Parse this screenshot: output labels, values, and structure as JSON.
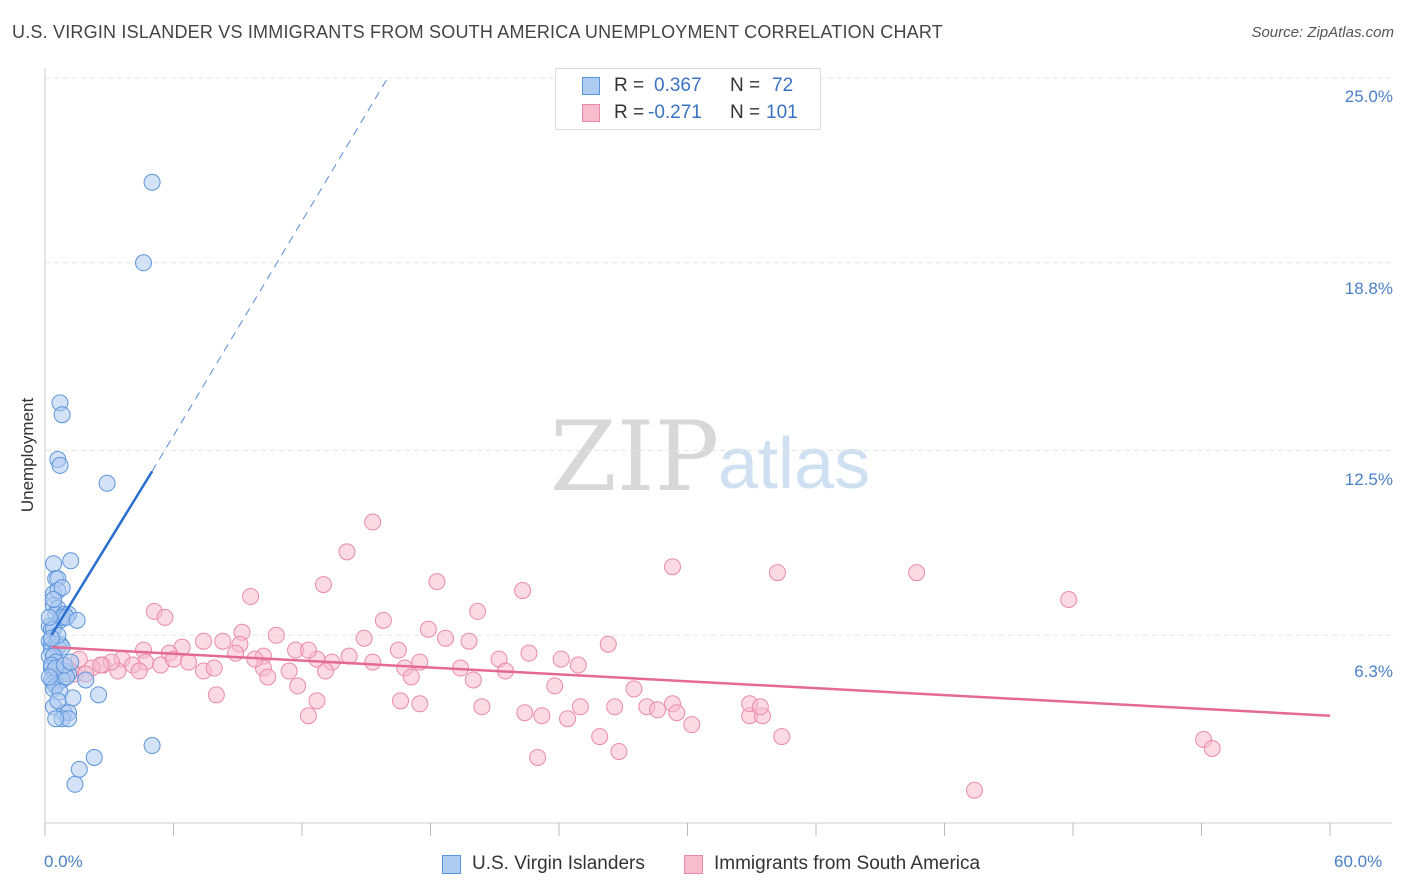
{
  "title": "U.S. VIRGIN ISLANDER VS IMMIGRANTS FROM SOUTH AMERICA UNEMPLOYMENT CORRELATION CHART",
  "source": "Source: ZipAtlas.com",
  "watermark": {
    "zip": "ZIP",
    "atlas": "atlas"
  },
  "legend_top": {
    "r_label": "R =",
    "n_label": "N =",
    "rows": [
      {
        "r": "0.367",
        "n": "72"
      },
      {
        "r": "-0.271",
        "n": "101"
      }
    ]
  },
  "colors": {
    "blue_fill": "#aecbf0",
    "blue_stroke": "#5b95dc",
    "blue_line": "#2a6fd0",
    "pink_fill": "#f7bccd",
    "pink_stroke": "#ea8aa8",
    "pink_line": "#e46a93",
    "grid": "#e6e6e6",
    "tick_label": "#4a80c8"
  },
  "chart_data": {
    "type": "scatter",
    "title": "U.S. VIRGIN ISLANDER VS IMMIGRANTS FROM SOUTH AMERICA UNEMPLOYMENT CORRELATION CHART",
    "xlabel": "",
    "ylabel": "Unemployment",
    "xlim": [
      0,
      60
    ],
    "ylim": [
      0,
      25
    ],
    "x_tick_labels": [
      "0.0%",
      "60.0%"
    ],
    "y_ticks": [
      6.3,
      12.5,
      18.8,
      25.0
    ],
    "y_tick_labels": [
      "6.3%",
      "12.5%",
      "18.8%",
      "25.0%"
    ],
    "grid": true,
    "legend_position": "bottom",
    "series": [
      {
        "name": "U.S. Virgin Islanders",
        "color": "blue",
        "trend": {
          "x": [
            0.3,
            5.0
          ],
          "y": [
            6.3,
            11.8
          ],
          "dashed_to": [
            16.0,
            25.0
          ]
        },
        "points": [
          [
            5.0,
            21.5
          ],
          [
            4.6,
            18.8
          ],
          [
            0.7,
            14.1
          ],
          [
            0.8,
            13.7
          ],
          [
            0.6,
            12.2
          ],
          [
            0.7,
            12.0
          ],
          [
            2.9,
            11.4
          ],
          [
            1.2,
            8.8
          ],
          [
            0.4,
            8.7
          ],
          [
            0.5,
            8.2
          ],
          [
            0.6,
            8.2
          ],
          [
            0.4,
            7.7
          ],
          [
            0.6,
            7.8
          ],
          [
            0.8,
            7.9
          ],
          [
            0.4,
            7.3
          ],
          [
            0.6,
            7.2
          ],
          [
            0.5,
            7.0
          ],
          [
            0.9,
            7.0
          ],
          [
            1.1,
            7.0
          ],
          [
            0.7,
            6.8
          ],
          [
            0.8,
            6.9
          ],
          [
            1.0,
            6.9
          ],
          [
            1.5,
            6.8
          ],
          [
            0.2,
            6.6
          ],
          [
            0.3,
            6.5
          ],
          [
            0.4,
            6.5
          ],
          [
            0.2,
            6.1
          ],
          [
            0.3,
            6.0
          ],
          [
            0.5,
            6.0
          ],
          [
            0.7,
            6.0
          ],
          [
            0.3,
            5.8
          ],
          [
            0.6,
            5.9
          ],
          [
            0.8,
            5.9
          ],
          [
            0.2,
            5.6
          ],
          [
            0.4,
            5.6
          ],
          [
            0.5,
            5.4
          ],
          [
            0.3,
            5.2
          ],
          [
            0.4,
            5.1
          ],
          [
            0.6,
            5.1
          ],
          [
            0.7,
            5.0
          ],
          [
            0.9,
            5.1
          ],
          [
            1.1,
            5.0
          ],
          [
            0.3,
            4.8
          ],
          [
            0.4,
            4.7
          ],
          [
            0.5,
            4.6
          ],
          [
            0.8,
            4.8
          ],
          [
            1.0,
            4.9
          ],
          [
            1.9,
            4.8
          ],
          [
            0.4,
            4.5
          ],
          [
            0.7,
            4.4
          ],
          [
            1.3,
            4.2
          ],
          [
            2.5,
            4.3
          ],
          [
            0.4,
            3.9
          ],
          [
            0.9,
            3.7
          ],
          [
            1.1,
            3.7
          ],
          [
            0.8,
            3.5
          ],
          [
            1.1,
            3.5
          ],
          [
            5.0,
            2.6
          ],
          [
            2.3,
            2.2
          ],
          [
            1.6,
            1.8
          ],
          [
            1.4,
            1.3
          ],
          [
            0.3,
            5.3
          ],
          [
            0.5,
            5.2
          ],
          [
            0.6,
            6.3
          ],
          [
            0.2,
            6.9
          ],
          [
            0.4,
            7.5
          ],
          [
            0.9,
            5.3
          ],
          [
            1.2,
            5.4
          ],
          [
            0.2,
            4.9
          ],
          [
            0.6,
            4.1
          ],
          [
            0.5,
            3.5
          ],
          [
            0.3,
            6.2
          ]
        ]
      },
      {
        "name": "Immigrants from South America",
        "color": "pink",
        "trend": {
          "x": [
            0.3,
            60.0
          ],
          "y": [
            5.9,
            3.6
          ]
        },
        "points": [
          [
            15.3,
            10.1
          ],
          [
            14.1,
            9.1
          ],
          [
            29.3,
            8.6
          ],
          [
            34.2,
            8.4
          ],
          [
            40.7,
            8.4
          ],
          [
            13.0,
            8.0
          ],
          [
            18.3,
            8.1
          ],
          [
            22.3,
            7.8
          ],
          [
            9.6,
            7.6
          ],
          [
            47.8,
            7.5
          ],
          [
            5.1,
            7.1
          ],
          [
            5.6,
            6.9
          ],
          [
            20.2,
            7.1
          ],
          [
            15.8,
            6.8
          ],
          [
            17.9,
            6.5
          ],
          [
            9.2,
            6.4
          ],
          [
            18.7,
            6.2
          ],
          [
            10.8,
            6.3
          ],
          [
            14.9,
            6.2
          ],
          [
            7.4,
            6.1
          ],
          [
            8.3,
            6.1
          ],
          [
            6.4,
            5.9
          ],
          [
            9.1,
            6.0
          ],
          [
            4.6,
            5.8
          ],
          [
            5.8,
            5.7
          ],
          [
            11.7,
            5.8
          ],
          [
            16.5,
            5.8
          ],
          [
            22.6,
            5.7
          ],
          [
            10.2,
            5.6
          ],
          [
            12.7,
            5.5
          ],
          [
            21.2,
            5.5
          ],
          [
            24.1,
            5.5
          ],
          [
            1.6,
            5.5
          ],
          [
            3.6,
            5.5
          ],
          [
            4.7,
            5.4
          ],
          [
            6.7,
            5.4
          ],
          [
            13.4,
            5.4
          ],
          [
            15.3,
            5.4
          ],
          [
            17.5,
            5.4
          ],
          [
            24.9,
            5.3
          ],
          [
            2.7,
            5.3
          ],
          [
            4.1,
            5.3
          ],
          [
            5.4,
            5.3
          ],
          [
            10.2,
            5.2
          ],
          [
            16.8,
            5.2
          ],
          [
            19.4,
            5.2
          ],
          [
            2.2,
            5.2
          ],
          [
            3.4,
            5.1
          ],
          [
            7.4,
            5.1
          ],
          [
            11.4,
            5.1
          ],
          [
            13.1,
            5.1
          ],
          [
            21.5,
            5.1
          ],
          [
            1.4,
            5.0
          ],
          [
            1.9,
            5.0
          ],
          [
            0.9,
            5.0
          ],
          [
            17.1,
            4.9
          ],
          [
            10.4,
            4.9
          ],
          [
            20.0,
            4.8
          ],
          [
            11.8,
            4.6
          ],
          [
            23.8,
            4.6
          ],
          [
            27.5,
            4.5
          ],
          [
            8.0,
            4.3
          ],
          [
            12.7,
            4.1
          ],
          [
            16.6,
            4.1
          ],
          [
            17.5,
            4.0
          ],
          [
            20.4,
            3.9
          ],
          [
            25.0,
            3.9
          ],
          [
            26.6,
            3.9
          ],
          [
            28.1,
            3.9
          ],
          [
            29.3,
            4.0
          ],
          [
            28.6,
            3.8
          ],
          [
            29.5,
            3.7
          ],
          [
            22.4,
            3.7
          ],
          [
            32.9,
            3.6
          ],
          [
            33.5,
            3.6
          ],
          [
            23.2,
            3.6
          ],
          [
            12.3,
            3.6
          ],
          [
            30.2,
            3.3
          ],
          [
            24.4,
            3.5
          ],
          [
            25.9,
            2.9
          ],
          [
            32.9,
            4.0
          ],
          [
            33.4,
            3.9
          ],
          [
            26.8,
            2.4
          ],
          [
            23.0,
            2.2
          ],
          [
            34.4,
            2.9
          ],
          [
            54.1,
            2.8
          ],
          [
            54.5,
            2.5
          ],
          [
            43.4,
            1.1
          ],
          [
            1.2,
            5.1
          ],
          [
            0.8,
            5.3
          ],
          [
            3.1,
            5.4
          ],
          [
            6.0,
            5.5
          ],
          [
            8.9,
            5.7
          ],
          [
            12.3,
            5.8
          ],
          [
            19.8,
            6.1
          ],
          [
            26.3,
            6.0
          ],
          [
            14.2,
            5.6
          ],
          [
            7.9,
            5.2
          ],
          [
            4.4,
            5.1
          ],
          [
            2.6,
            5.3
          ],
          [
            9.8,
            5.5
          ]
        ]
      }
    ]
  },
  "legend_bottom": [
    {
      "label": "U.S. Virgin Islanders"
    },
    {
      "label": "Immigrants from South America"
    }
  ]
}
